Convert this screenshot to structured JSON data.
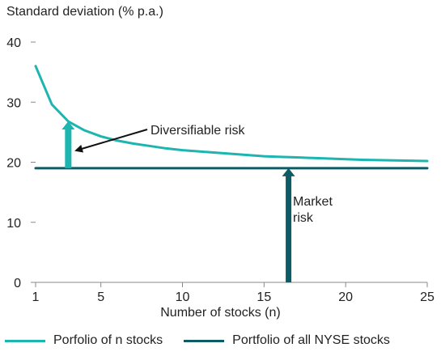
{
  "chart_data": {
    "type": "line",
    "ylabel": "Standard deviation (% p.a.)",
    "xlabel": "Number of stocks (n)",
    "x_ticks": [
      1,
      5,
      10,
      15,
      20,
      25
    ],
    "y_ticks": [
      0,
      10,
      20,
      30,
      40
    ],
    "xlim": [
      1,
      25
    ],
    "ylim": [
      0,
      40
    ],
    "grid": false,
    "legend_position": "bottom",
    "series": [
      {
        "name": "Porfolio of n stocks",
        "color": "#1cb5b0",
        "x": [
          1,
          2,
          3,
          4,
          5,
          6,
          7,
          8,
          9,
          10,
          11,
          12,
          13,
          14,
          15,
          16,
          17,
          18,
          19,
          20,
          21,
          22,
          23,
          24,
          25
        ],
        "y": [
          36.0,
          29.6,
          26.8,
          25.3,
          24.3,
          23.6,
          23.1,
          22.7,
          22.3,
          22.0,
          21.8,
          21.6,
          21.4,
          21.2,
          21.0,
          20.9,
          20.8,
          20.7,
          20.6,
          20.5,
          20.4,
          20.35,
          20.3,
          20.25,
          20.2
        ]
      },
      {
        "name": "Portfolio of all NYSE stocks",
        "color": "#0d5b64",
        "x": [
          1,
          25
        ],
        "y": [
          19.0,
          19.0
        ]
      }
    ],
    "annotations": [
      {
        "text": "Diversifiable risk",
        "arrow_x": 3,
        "from_y": 19.0,
        "to_y": 26.8,
        "color": "#1cb5b0"
      },
      {
        "text_lines": [
          "Market",
          "risk"
        ],
        "arrow_x": 16.5,
        "from_y": 0,
        "to_y": 19.0,
        "color": "#0d5b64"
      }
    ]
  }
}
